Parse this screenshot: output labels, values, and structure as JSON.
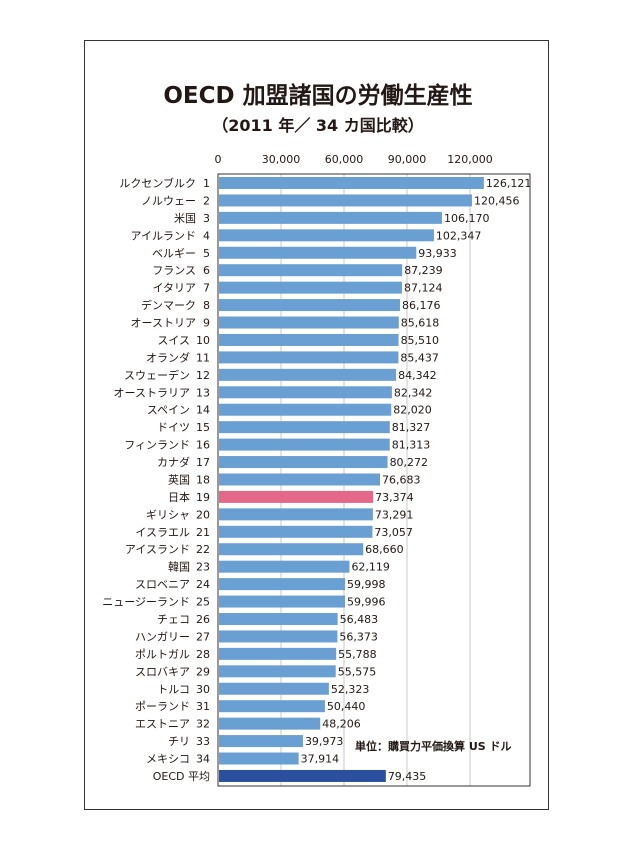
{
  "chart_data": {
    "type": "bar",
    "orientation": "horizontal",
    "title": "OECD 加盟諸国の労働生産性",
    "subtitle": "（2011 年／ 34 カ国比較）",
    "unit_note": "単位：購買力平価換算 US ドル",
    "xlim": [
      0,
      150000
    ],
    "xticks": [
      "0",
      "30,000",
      "60,000",
      "90,000",
      "120,000"
    ],
    "xtick_values": [
      0,
      30000,
      60000,
      90000,
      120000
    ],
    "grid": true,
    "colors": {
      "default": "#6a9fd4",
      "highlight": "#e5678a",
      "average": "#2a4f9e"
    },
    "categories": [
      {
        "name": "ルクセンブルク",
        "rank": "1",
        "value": 126121,
        "label": "126,121"
      },
      {
        "name": "ノルウェー",
        "rank": "2",
        "value": 120456,
        "label": "120,456"
      },
      {
        "name": "米国",
        "rank": "3",
        "value": 106170,
        "label": "106,170"
      },
      {
        "name": "アイルランド",
        "rank": "4",
        "value": 102347,
        "label": "102,347"
      },
      {
        "name": "ベルギー",
        "rank": "5",
        "value": 93933,
        "label": "93,933"
      },
      {
        "name": "フランス",
        "rank": "6",
        "value": 87239,
        "label": "87,239"
      },
      {
        "name": "イタリア",
        "rank": "7",
        "value": 87124,
        "label": "87,124"
      },
      {
        "name": "デンマーク",
        "rank": "8",
        "value": 86176,
        "label": "86,176"
      },
      {
        "name": "オーストリア",
        "rank": "9",
        "value": 85618,
        "label": "85,618"
      },
      {
        "name": "スイス",
        "rank": "10",
        "value": 85510,
        "label": "85,510"
      },
      {
        "name": "オランダ",
        "rank": "11",
        "value": 85437,
        "label": "85,437"
      },
      {
        "name": "スウェーデン",
        "rank": "12",
        "value": 84342,
        "label": "84,342"
      },
      {
        "name": "オーストラリア",
        "rank": "13",
        "value": 82342,
        "label": "82,342"
      },
      {
        "name": "スペイン",
        "rank": "14",
        "value": 82020,
        "label": "82,020"
      },
      {
        "name": "ドイツ",
        "rank": "15",
        "value": 81327,
        "label": "81,327"
      },
      {
        "name": "フィンランド",
        "rank": "16",
        "value": 81313,
        "label": "81,313"
      },
      {
        "name": "カナダ",
        "rank": "17",
        "value": 80272,
        "label": "80,272"
      },
      {
        "name": "英国",
        "rank": "18",
        "value": 76683,
        "label": "76,683"
      },
      {
        "name": "日本",
        "rank": "19",
        "value": 73374,
        "label": "73,374",
        "type": "highlight"
      },
      {
        "name": "ギリシャ",
        "rank": "20",
        "value": 73291,
        "label": "73,291"
      },
      {
        "name": "イスラエル",
        "rank": "21",
        "value": 73057,
        "label": "73,057"
      },
      {
        "name": "アイスランド",
        "rank": "22",
        "value": 68660,
        "label": "68,660"
      },
      {
        "name": "韓国",
        "rank": "23",
        "value": 62119,
        "label": "62,119"
      },
      {
        "name": "スロベニア",
        "rank": "24",
        "value": 59998,
        "label": "59,998"
      },
      {
        "name": "ニュージーランド",
        "rank": "25",
        "value": 59996,
        "label": "59,996"
      },
      {
        "name": "チェコ",
        "rank": "26",
        "value": 56483,
        "label": "56,483"
      },
      {
        "name": "ハンガリー",
        "rank": "27",
        "value": 56373,
        "label": "56,373"
      },
      {
        "name": "ポルトガル",
        "rank": "28",
        "value": 55788,
        "label": "55,788"
      },
      {
        "name": "スロバキア",
        "rank": "29",
        "value": 55575,
        "label": "55,575"
      },
      {
        "name": "トルコ",
        "rank": "30",
        "value": 52323,
        "label": "52,323"
      },
      {
        "name": "ポーランド",
        "rank": "31",
        "value": 50440,
        "label": "50,440"
      },
      {
        "name": "エストニア",
        "rank": "32",
        "value": 48206,
        "label": "48,206"
      },
      {
        "name": "チリ",
        "rank": "33",
        "value": 39973,
        "label": "39,973"
      },
      {
        "name": "メキシコ",
        "rank": "34",
        "value": 37914,
        "label": "37,914"
      },
      {
        "name": "OECD 平均",
        "rank": "",
        "value": 79435,
        "label": "79,435",
        "type": "average"
      }
    ]
  }
}
